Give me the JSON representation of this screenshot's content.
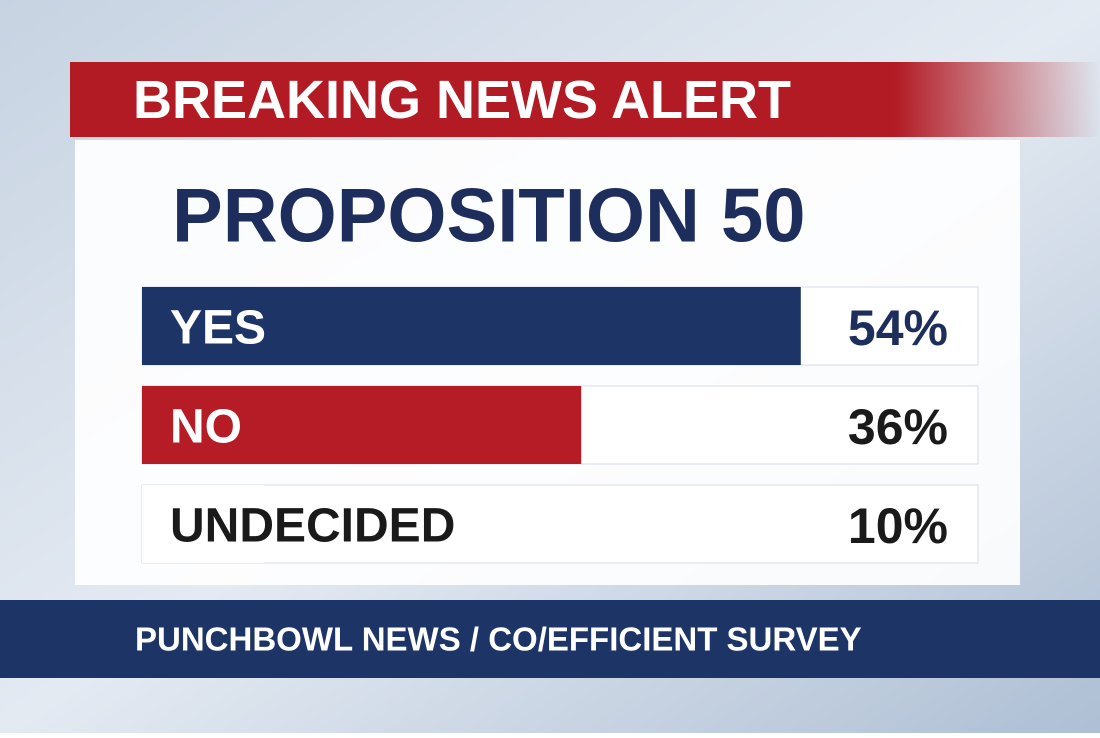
{
  "chart_data": {
    "type": "bar",
    "title": "BREAKING NEWS ALERT",
    "subtitle": "PROPOSITION 50",
    "categories": [
      "YES",
      "NO",
      "UNDECIDED"
    ],
    "values": [
      54,
      36,
      10
    ],
    "value_labels": [
      "54%",
      "36%",
      "10%"
    ],
    "colors": [
      "#1d3566",
      "#b51c25",
      "#ffffff"
    ],
    "source": "PUNCHBOWL NEWS / CO/EFFICIENT SURVEY"
  }
}
